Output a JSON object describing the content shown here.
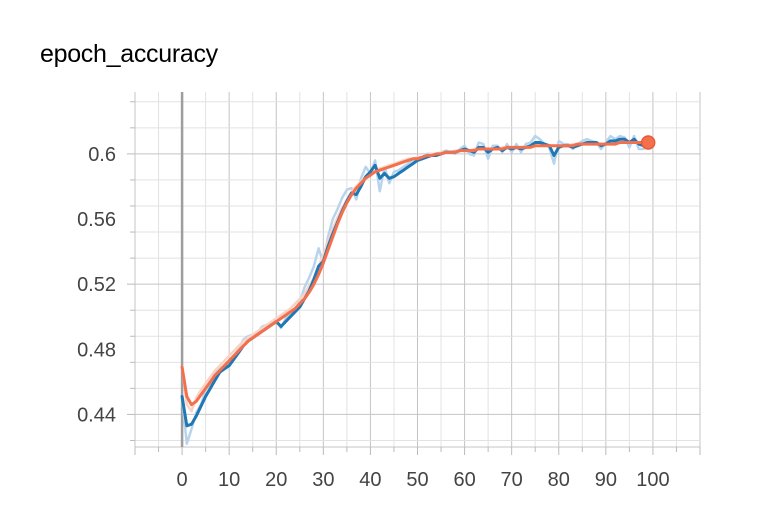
{
  "chart_data": {
    "type": "line",
    "title": "epoch_accuracy",
    "xlabel": "",
    "ylabel": "",
    "xlim": [
      -10,
      110
    ],
    "ylim": [
      0.42,
      0.638
    ],
    "x_ticks": [
      0,
      10,
      20,
      30,
      40,
      50,
      60,
      70,
      80,
      90,
      100
    ],
    "y_ticks": [
      0.44,
      0.48,
      0.52,
      0.56,
      0.6
    ],
    "y_tick_labels": [
      "0.44",
      "0.48",
      "0.52",
      "0.56",
      "0.6"
    ],
    "grid": true,
    "series": [
      {
        "color": "#1f77b4",
        "raw_color": "#b8d4ec",
        "x": [
          0,
          1,
          2,
          3,
          4,
          5,
          6,
          7,
          8,
          9,
          10,
          11,
          12,
          13,
          14,
          15,
          16,
          17,
          18,
          19,
          20,
          21,
          22,
          23,
          24,
          25,
          26,
          27,
          28,
          29,
          30,
          31,
          32,
          33,
          34,
          35,
          36,
          37,
          38,
          39,
          40,
          41,
          42,
          43,
          44,
          45,
          46,
          47,
          48,
          49,
          50,
          51,
          52,
          53,
          54,
          55,
          56,
          57,
          58,
          59,
          60,
          61,
          62,
          63,
          64,
          65,
          66,
          67,
          68,
          69,
          70,
          71,
          72,
          73,
          74,
          75,
          76,
          77,
          78,
          79,
          80,
          81,
          82,
          83,
          84,
          85,
          86,
          87,
          88,
          89,
          90,
          91,
          92,
          93,
          94,
          95,
          96,
          97,
          98,
          99
        ],
        "smoothed": [
          0.451,
          0.433,
          0.434,
          0.439,
          0.445,
          0.451,
          0.456,
          0.461,
          0.466,
          0.468,
          0.47,
          0.474,
          0.478,
          0.482,
          0.485,
          0.487,
          0.489,
          0.491,
          0.493,
          0.495,
          0.497,
          0.494,
          0.497,
          0.5,
          0.503,
          0.506,
          0.511,
          0.516,
          0.523,
          0.531,
          0.534,
          0.543,
          0.551,
          0.558,
          0.565,
          0.571,
          0.576,
          0.575,
          0.58,
          0.586,
          0.589,
          0.593,
          0.585,
          0.588,
          0.585,
          0.586,
          0.588,
          0.59,
          0.592,
          0.594,
          0.596,
          0.597,
          0.598,
          0.599,
          0.599,
          0.6,
          0.601,
          0.601,
          0.601,
          0.602,
          0.603,
          0.602,
          0.601,
          0.604,
          0.604,
          0.601,
          0.603,
          0.604,
          0.602,
          0.604,
          0.603,
          0.604,
          0.603,
          0.604,
          0.605,
          0.607,
          0.607,
          0.606,
          0.605,
          0.599,
          0.604,
          0.605,
          0.605,
          0.604,
          0.605,
          0.606,
          0.607,
          0.607,
          0.607,
          0.605,
          0.606,
          0.608,
          0.608,
          0.609,
          0.609,
          0.607,
          0.609,
          0.606,
          0.605,
          0.607
        ],
        "raw": [
          0.451,
          0.422,
          0.431,
          0.441,
          0.446,
          0.455,
          0.459,
          0.465,
          0.468,
          0.47,
          0.471,
          0.476,
          0.48,
          0.486,
          0.488,
          0.489,
          0.49,
          0.494,
          0.495,
          0.496,
          0.498,
          0.493,
          0.499,
          0.502,
          0.505,
          0.509,
          0.518,
          0.524,
          0.531,
          0.542,
          0.533,
          0.549,
          0.56,
          0.566,
          0.573,
          0.578,
          0.579,
          0.572,
          0.585,
          0.592,
          0.588,
          0.596,
          0.577,
          0.592,
          0.582,
          0.589,
          0.59,
          0.592,
          0.594,
          0.596,
          0.598,
          0.598,
          0.6,
          0.6,
          0.599,
          0.601,
          0.602,
          0.601,
          0.6,
          0.603,
          0.605,
          0.6,
          0.599,
          0.607,
          0.606,
          0.597,
          0.605,
          0.605,
          0.601,
          0.606,
          0.601,
          0.606,
          0.601,
          0.606,
          0.607,
          0.611,
          0.609,
          0.606,
          0.604,
          0.594,
          0.608,
          0.606,
          0.606,
          0.603,
          0.606,
          0.608,
          0.609,
          0.608,
          0.607,
          0.603,
          0.607,
          0.611,
          0.609,
          0.611,
          0.61,
          0.604,
          0.611,
          0.603,
          0.603,
          0.609
        ]
      },
      {
        "color": "#f4704d",
        "raw_color": "#fbd3c5",
        "x": [
          0,
          1,
          2,
          3,
          4,
          5,
          6,
          7,
          8,
          9,
          10,
          11,
          12,
          13,
          14,
          15,
          16,
          17,
          18,
          19,
          20,
          21,
          22,
          23,
          24,
          25,
          26,
          27,
          28,
          29,
          30,
          31,
          32,
          33,
          34,
          35,
          36,
          37,
          38,
          39,
          40,
          41,
          42,
          43,
          44,
          45,
          46,
          47,
          48,
          49,
          50,
          51,
          52,
          53,
          54,
          55,
          56,
          57,
          58,
          59,
          60,
          61,
          62,
          63,
          64,
          65,
          66,
          67,
          68,
          69,
          70,
          71,
          72,
          73,
          74,
          75,
          76,
          77,
          78,
          79,
          80,
          81,
          82,
          83,
          84,
          85,
          86,
          87,
          88,
          89,
          90,
          91,
          92,
          93,
          94,
          95,
          96,
          97,
          98,
          99
        ],
        "smoothed": [
          0.469,
          0.451,
          0.446,
          0.448,
          0.452,
          0.456,
          0.46,
          0.464,
          0.467,
          0.47,
          0.473,
          0.476,
          0.479,
          0.482,
          0.485,
          0.487,
          0.489,
          0.491,
          0.493,
          0.495,
          0.497,
          0.499,
          0.501,
          0.503,
          0.505,
          0.508,
          0.511,
          0.515,
          0.52,
          0.526,
          0.533,
          0.541,
          0.549,
          0.557,
          0.564,
          0.57,
          0.575,
          0.579,
          0.582,
          0.585,
          0.587,
          0.589,
          0.59,
          0.591,
          0.592,
          0.593,
          0.594,
          0.595,
          0.596,
          0.597,
          0.597,
          0.598,
          0.599,
          0.599,
          0.6,
          0.6,
          0.601,
          0.601,
          0.601,
          0.602,
          0.602,
          0.602,
          0.602,
          0.603,
          0.603,
          0.603,
          0.603,
          0.603,
          0.603,
          0.604,
          0.604,
          0.604,
          0.604,
          0.604,
          0.604,
          0.605,
          0.605,
          0.605,
          0.605,
          0.605,
          0.605,
          0.605,
          0.605,
          0.605,
          0.606,
          0.606,
          0.606,
          0.606,
          0.606,
          0.606,
          0.606,
          0.606,
          0.606,
          0.607,
          0.607,
          0.607,
          0.607,
          0.607,
          0.607,
          0.607
        ],
        "raw": [
          0.469,
          0.446,
          0.442,
          0.45,
          0.455,
          0.459,
          0.463,
          0.467,
          0.47,
          0.473,
          0.476,
          0.479,
          0.482,
          0.485,
          0.487,
          0.489,
          0.491,
          0.493,
          0.495,
          0.497,
          0.499,
          0.501,
          0.503,
          0.505,
          0.508,
          0.511,
          0.514,
          0.519,
          0.524,
          0.531,
          0.538,
          0.546,
          0.554,
          0.561,
          0.567,
          0.572,
          0.577,
          0.58,
          0.583,
          0.586,
          0.588,
          0.59,
          0.591,
          0.592,
          0.593,
          0.594,
          0.595,
          0.596,
          0.597,
          0.597,
          0.598,
          0.598,
          0.599,
          0.6,
          0.6,
          0.601,
          0.601,
          0.601,
          0.602,
          0.602,
          0.602,
          0.602,
          0.603,
          0.603,
          0.603,
          0.603,
          0.603,
          0.603,
          0.604,
          0.604,
          0.604,
          0.604,
          0.604,
          0.604,
          0.605,
          0.605,
          0.605,
          0.605,
          0.605,
          0.605,
          0.605,
          0.605,
          0.605,
          0.606,
          0.606,
          0.606,
          0.606,
          0.606,
          0.606,
          0.606,
          0.606,
          0.606,
          0.607,
          0.607,
          0.607,
          0.607,
          0.607,
          0.607,
          0.607,
          0.607
        ]
      }
    ],
    "end_markers": [
      {
        "x": 99,
        "y": 0.607,
        "color": "#f4704d"
      }
    ]
  }
}
